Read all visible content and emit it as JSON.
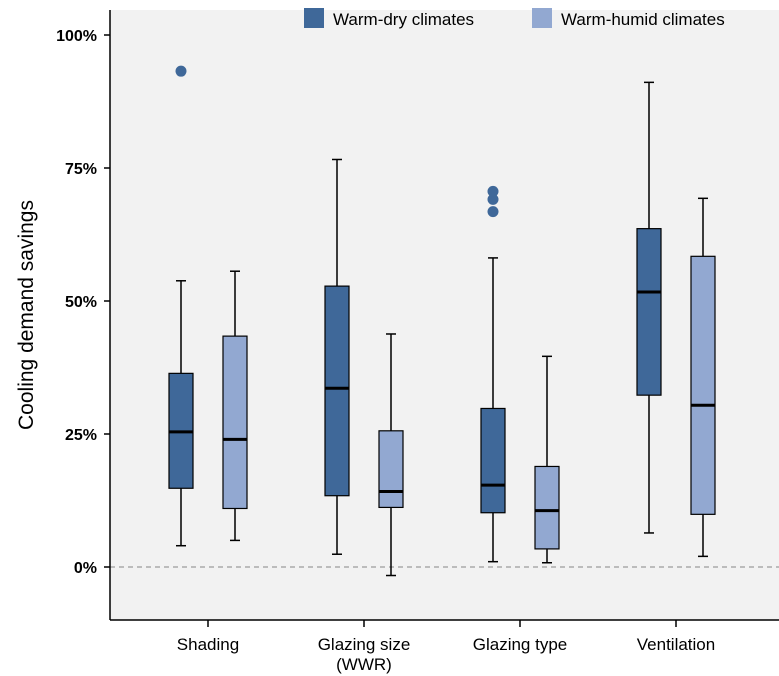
{
  "chart_data": {
    "type": "box",
    "ylabel": "Cooling demand savings",
    "xlabel": "",
    "title": "",
    "ylim": [
      -10,
      100
    ],
    "yticks": [
      0,
      25,
      50,
      75,
      100
    ],
    "ytick_labels": [
      "0%",
      "25%",
      "50%",
      "75%",
      "100%"
    ],
    "categories": [
      "Shading",
      "Glazing size\n(WWR)",
      "Glazing type",
      "Ventilation"
    ],
    "reference_line": 0,
    "legend_position": "top-right",
    "series": [
      {
        "name": "Warm-dry climates",
        "color": "#3f6899",
        "boxes": [
          {
            "min": 4.0,
            "q1": 14.8,
            "median": 25.4,
            "q3": 36.4,
            "max": 53.8,
            "outliers": [
              93.2
            ]
          },
          {
            "min": 2.4,
            "q1": 13.4,
            "median": 33.6,
            "q3": 52.8,
            "max": 76.6,
            "outliers": []
          },
          {
            "min": 1.0,
            "q1": 10.2,
            "median": 15.4,
            "q3": 29.8,
            "max": 58.1,
            "outliers": [
              66.8,
              69.1,
              70.6
            ]
          },
          {
            "min": 6.4,
            "q1": 32.3,
            "median": 51.7,
            "q3": 63.6,
            "max": 91.1,
            "outliers": []
          }
        ]
      },
      {
        "name": "Warm-humid climates",
        "color": "#92a8d1",
        "boxes": [
          {
            "min": 5.0,
            "q1": 11.0,
            "median": 24.0,
            "q3": 43.4,
            "max": 55.6,
            "outliers": []
          },
          {
            "min": -1.6,
            "q1": 11.2,
            "median": 14.2,
            "q3": 25.6,
            "max": 43.8,
            "outliers": []
          },
          {
            "min": 0.8,
            "q1": 3.4,
            "median": 10.6,
            "q3": 18.9,
            "max": 39.6,
            "outliers": []
          },
          {
            "min": 2.0,
            "q1": 9.9,
            "median": 30.4,
            "q3": 58.4,
            "max": 69.3,
            "outliers": []
          }
        ]
      }
    ]
  }
}
